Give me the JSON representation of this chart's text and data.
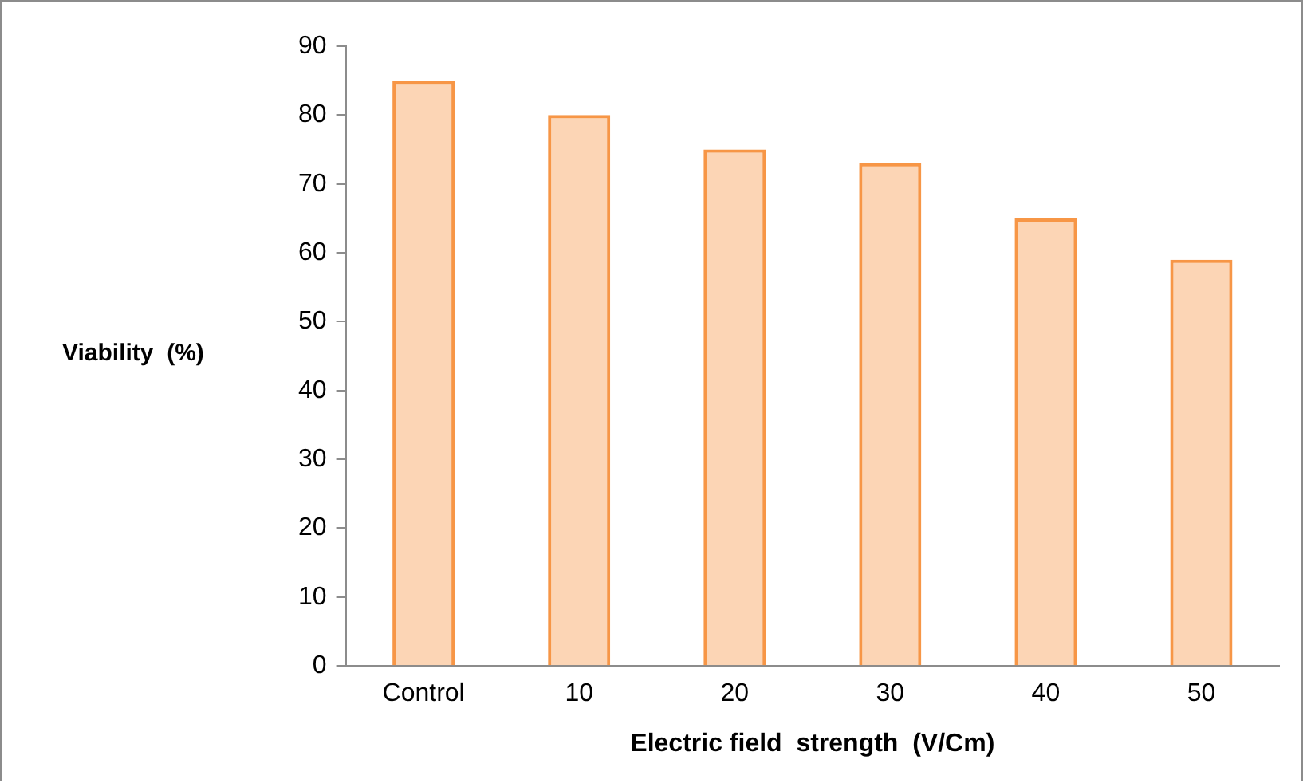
{
  "chart_data": {
    "type": "bar",
    "xlabel": "Electric field  strength  (V/Cm)",
    "ylabel": "Viability  (%)",
    "categories": [
      "Control",
      "10",
      "20",
      "30",
      "40",
      "50"
    ],
    "values": [
      85,
      80,
      75,
      73,
      65,
      59
    ],
    "color": "#f79646",
    "ylim": [
      0,
      90
    ],
    "yticks": [
      0,
      10,
      20,
      30,
      40,
      50,
      60,
      70,
      80,
      90
    ],
    "grid": false,
    "legend": false
  }
}
